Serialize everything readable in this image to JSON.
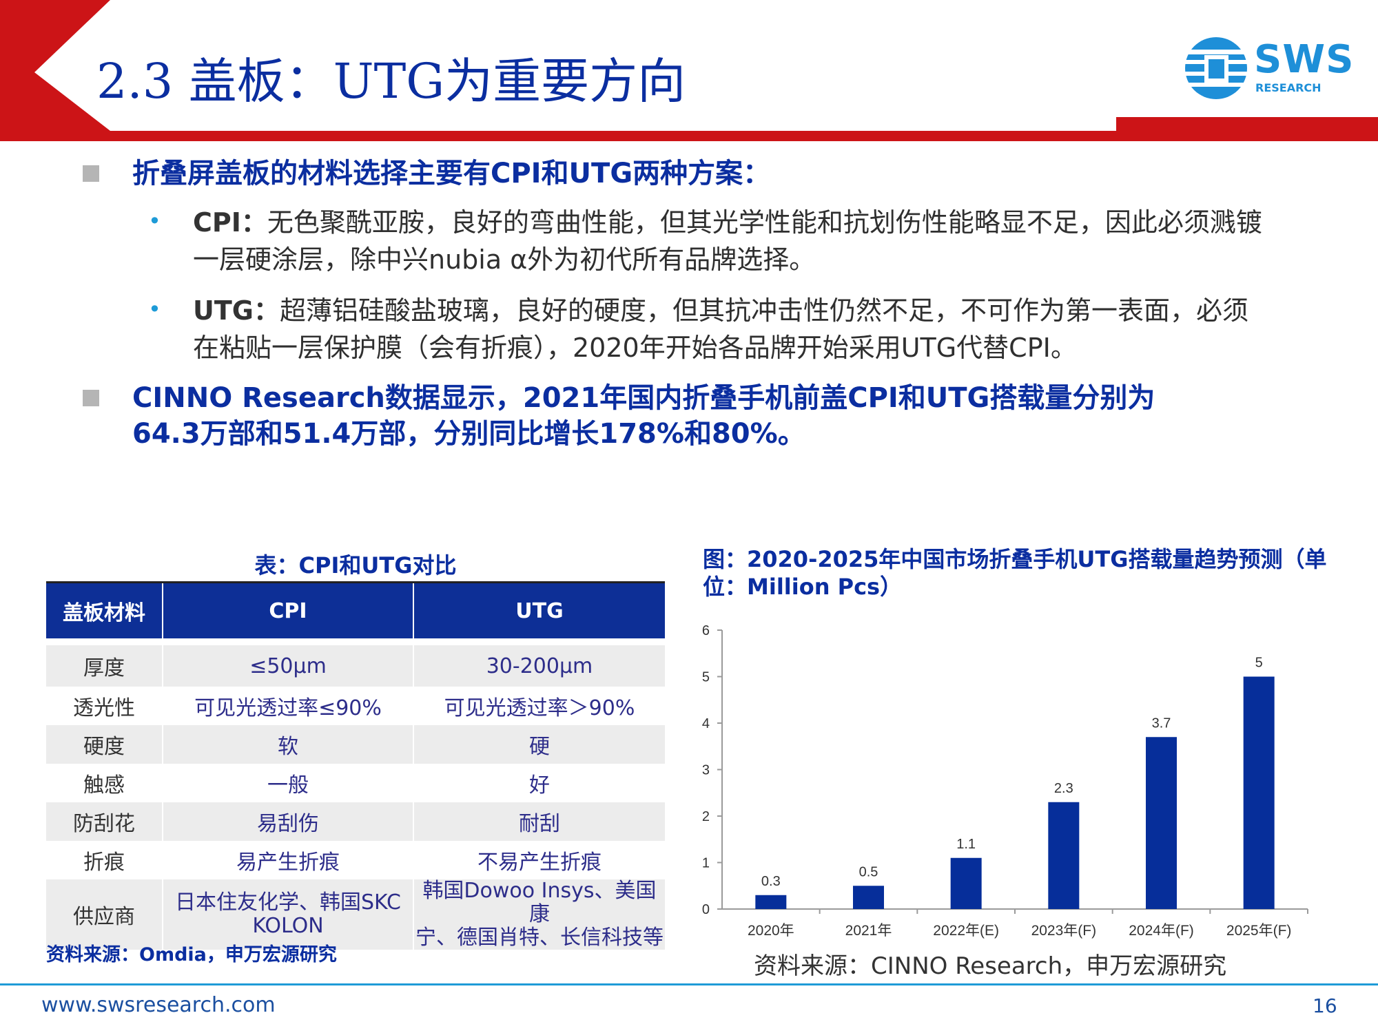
{
  "header": {
    "title": "2.3 盖板：UTG为重要方向",
    "logo_text": "SWS",
    "logo_sub": "RESEARCH",
    "colors": {
      "banner_red": "#cc1417",
      "title_blue": "#0b2ea0",
      "logo_blue": "#1e8fd8"
    }
  },
  "bullets": {
    "b1": "折叠屏盖板的材料选择主要有CPI和UTG两种方案：",
    "cpi_label": "CPI：",
    "cpi_line1": "无色聚酰亚胺，良好的弯曲性能，但其光学性能和抗划伤性能略显不足，因此必须溅镀",
    "cpi_line2": "一层硬涂层，除中兴nubia α外为初代所有品牌选择。",
    "utg_label": "UTG：",
    "utg_line1": "超薄铝硅酸盐玻璃，良好的硬度，但其抗冲击性仍然不足，不可作为第一表面，必须",
    "utg_line2": "在粘贴一层保护膜（会有折痕），2020年开始各品牌开始采用UTG代替CPI。",
    "b2_line1": "CINNO Research数据显示，2021年国内折叠手机前盖CPI和UTG搭载量分别为",
    "b2_line2": "64.3万部和51.4万部，分别同比增长178%和80%。"
  },
  "table": {
    "caption": "表：CPI和UTG对比",
    "headers": [
      "盖板材料",
      "CPI",
      "UTG"
    ],
    "rows": [
      [
        "厚度",
        "≤50μm",
        "30-200μm"
      ],
      [
        "透光性",
        "可见光透过率≤90%",
        "可见光透过率＞90%"
      ],
      [
        "硬度",
        "软",
        "硬"
      ],
      [
        "触感",
        "一般",
        "好"
      ],
      [
        "防刮花",
        "易刮伤",
        "耐刮"
      ],
      [
        "折痕",
        "易产生折痕",
        "不易产生折痕"
      ]
    ],
    "supplier_label": "供应商",
    "supplier_cpi_1": "日本住友化学、韩国SKC",
    "supplier_cpi_2": "KOLON",
    "supplier_utg_1": "韩国Dowoo Insys、美国康",
    "supplier_utg_2": "宁、德国肖特、长信科技等",
    "source": "资料来源：Omdia，申万宏源研究"
  },
  "chart_data": {
    "type": "bar",
    "title_line1": "图：2020-2025年中国市场折叠手机UTG搭载量趋势预测（单",
    "title_line2": "位：Million Pcs）",
    "categories": [
      "2020年",
      "2021年",
      "2022年(E)",
      "2023年(F)",
      "2024年(F)",
      "2025年(F)"
    ],
    "values": [
      0.3,
      0.5,
      1.1,
      2.3,
      3.7,
      5
    ],
    "value_labels": [
      "0.3",
      "0.5",
      "1.1",
      "2.3",
      "3.7",
      "5"
    ],
    "y_ticks": [
      "0",
      "1",
      "2",
      "3",
      "4",
      "5",
      "6"
    ],
    "ylim": [
      0,
      6
    ],
    "grid": false,
    "bar_color": "#062e9a",
    "source": "资料来源：CINNO Research，申万宏源研究"
  },
  "footer": {
    "url": "www.swsresearch.com",
    "page": "16"
  }
}
